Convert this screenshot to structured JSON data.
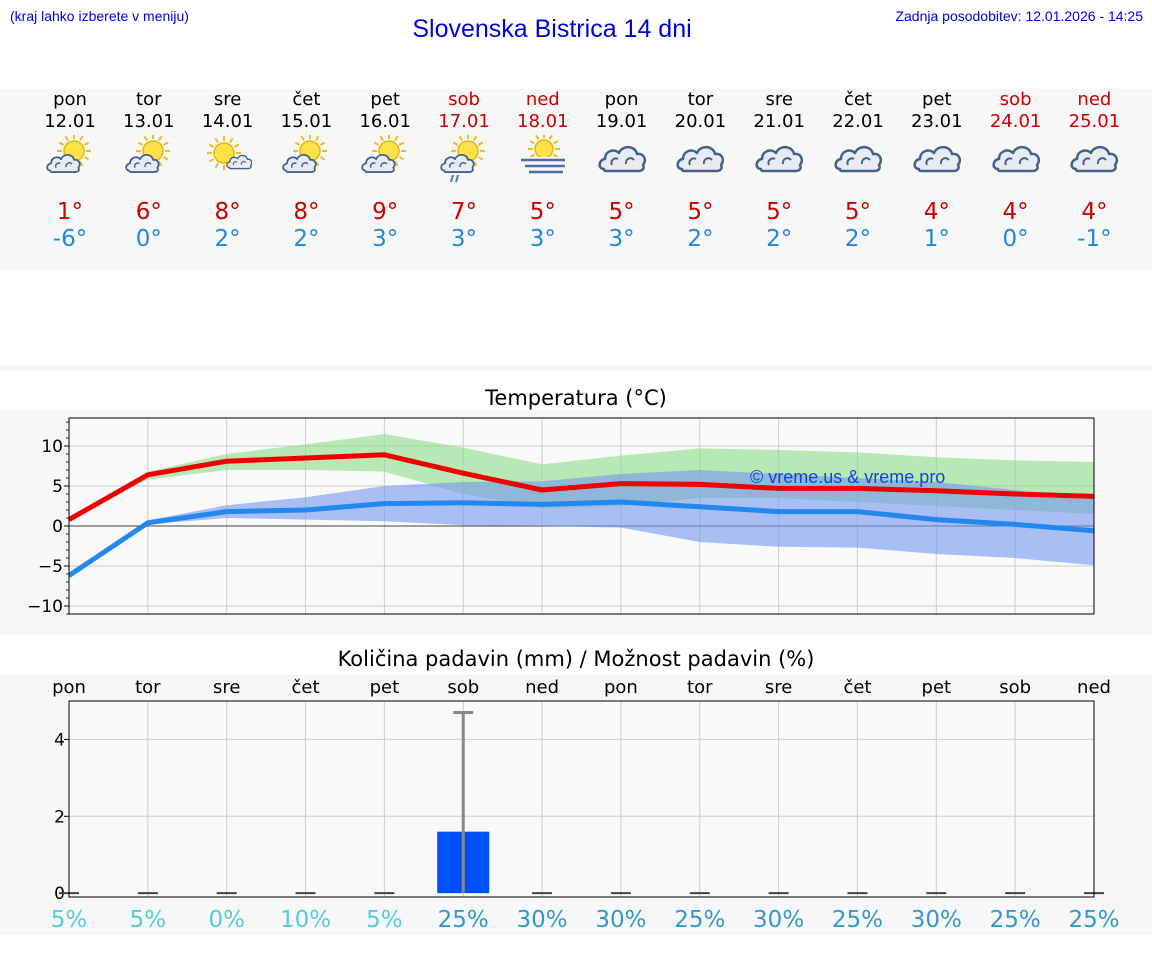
{
  "header": {
    "menu_hint": "(kraj lahko izberete v meniju)",
    "title": "Slovenska Bistrica 14 dni",
    "updated": "Zadnja posodobitev: 12.01.2026 - 14:25"
  },
  "days": [
    {
      "name": "pon",
      "date": "12.01",
      "tmax": "1°",
      "tmin": "-6°",
      "icon": "sun-cloud-icon",
      "weekend": false
    },
    {
      "name": "tor",
      "date": "13.01",
      "tmax": "6°",
      "tmin": "0°",
      "icon": "sun-cloud-icon",
      "weekend": false
    },
    {
      "name": "sre",
      "date": "14.01",
      "tmax": "8°",
      "tmin": "2°",
      "icon": "sun-small-cloud-icon",
      "weekend": false
    },
    {
      "name": "čet",
      "date": "15.01",
      "tmax": "8°",
      "tmin": "2°",
      "icon": "sun-cloud-icon",
      "weekend": false
    },
    {
      "name": "pet",
      "date": "16.01",
      "tmax": "9°",
      "tmin": "3°",
      "icon": "sun-cloud-icon",
      "weekend": false
    },
    {
      "name": "sob",
      "date": "17.01",
      "tmax": "7°",
      "tmin": "3°",
      "icon": "sun-cloud-rain-icon",
      "weekend": true
    },
    {
      "name": "ned",
      "date": "18.01",
      "tmax": "5°",
      "tmin": "3°",
      "icon": "sun-fog-icon",
      "weekend": true
    },
    {
      "name": "pon",
      "date": "19.01",
      "tmax": "5°",
      "tmin": "3°",
      "icon": "cloud-icon",
      "weekend": false
    },
    {
      "name": "tor",
      "date": "20.01",
      "tmax": "5°",
      "tmin": "2°",
      "icon": "cloud-icon",
      "weekend": false
    },
    {
      "name": "sre",
      "date": "21.01",
      "tmax": "5°",
      "tmin": "2°",
      "icon": "cloud-icon",
      "weekend": false
    },
    {
      "name": "čet",
      "date": "22.01",
      "tmax": "5°",
      "tmin": "2°",
      "icon": "cloud-icon",
      "weekend": false
    },
    {
      "name": "pet",
      "date": "23.01",
      "tmax": "4°",
      "tmin": "1°",
      "icon": "cloud-icon",
      "weekend": false
    },
    {
      "name": "sob",
      "date": "24.01",
      "tmax": "4°",
      "tmin": "0°",
      "icon": "cloud-icon",
      "weekend": true
    },
    {
      "name": "ned",
      "date": "25.01",
      "tmax": "4°",
      "tmin": "-1°",
      "icon": "cloud-icon",
      "weekend": true
    }
  ],
  "chart_data": [
    {
      "type": "line",
      "title": "Temperatura (°C)",
      "x": [
        0,
        1,
        2,
        3,
        4,
        5,
        6,
        7,
        8,
        9,
        10,
        11,
        12,
        13
      ],
      "ylim": [
        -11,
        13.5
      ],
      "yticks": [
        10,
        5,
        0,
        -5,
        -10
      ],
      "ytick_labels": [
        "10",
        "5",
        "0",
        "−5",
        "−10"
      ],
      "series": [
        {
          "name": "max",
          "color": "#ee0000",
          "values": [
            0.8,
            6.4,
            8.1,
            8.5,
            8.9,
            6.6,
            4.5,
            5.3,
            5.2,
            4.7,
            4.7,
            4.4,
            4.0,
            3.7
          ]
        },
        {
          "name": "min",
          "color": "#2288ee",
          "values": [
            -6.2,
            0.4,
            1.8,
            2.0,
            2.8,
            2.9,
            2.7,
            3.0,
            2.4,
            1.8,
            1.8,
            0.8,
            0.2,
            -0.6
          ]
        }
      ],
      "bands": [
        {
          "name": "max-range",
          "color": "#8fdd88",
          "low": [
            0.8,
            5.8,
            7.0,
            7.0,
            6.8,
            4.0,
            2.2,
            2.5,
            3.5,
            3.5,
            3.0,
            2.5,
            2.0,
            1.5
          ],
          "high": [
            0.8,
            6.8,
            9.0,
            10.2,
            11.5,
            9.8,
            7.7,
            8.8,
            9.7,
            9.5,
            9.2,
            8.6,
            8.2,
            8.0
          ]
        },
        {
          "name": "min-range",
          "color": "#7799ee",
          "low": [
            -6.2,
            0.2,
            1.0,
            0.8,
            0.6,
            0.1,
            0.0,
            -0.2,
            -2.0,
            -2.6,
            -2.7,
            -3.5,
            -4.0,
            -4.9
          ],
          "high": [
            -6.2,
            0.7,
            2.6,
            3.6,
            5.0,
            5.5,
            5.6,
            6.5,
            7.0,
            6.5,
            6.0,
            5.5,
            4.5,
            3.5
          ]
        }
      ],
      "watermark": "© vreme.us & vreme.pro",
      "grid": true
    },
    {
      "type": "bar",
      "title": "Količina padavin (mm) / Možnost padavin (%)",
      "categories": [
        "pon",
        "tor",
        "sre",
        "čet",
        "pet",
        "sob",
        "ned",
        "pon",
        "tor",
        "sre",
        "čet",
        "pet",
        "sob",
        "ned"
      ],
      "values": [
        0,
        0,
        0,
        0,
        0,
        1.6,
        0,
        0,
        0,
        0,
        0,
        0,
        0,
        0
      ],
      "error_high": [
        0,
        0,
        0,
        0,
        0,
        4.7,
        0,
        0,
        0,
        0,
        0,
        0,
        0,
        0
      ],
      "ylim": [
        -0.1,
        5.0
      ],
      "yticks": [
        0,
        2,
        4
      ],
      "ytick_labels": [
        "0",
        "2",
        "4"
      ],
      "bar_color": "#0050ff",
      "probabilities": [
        "5%",
        "5%",
        "0%",
        "10%",
        "5%",
        "25%",
        "30%",
        "30%",
        "25%",
        "30%",
        "25%",
        "30%",
        "25%",
        "25%"
      ],
      "probability_colors": [
        "#55ccdd",
        "#55ccdd",
        "#55ccdd",
        "#55ccdd",
        "#55ccdd",
        "#3399cc",
        "#3399cc",
        "#3399cc",
        "#3399cc",
        "#3399cc",
        "#3399cc",
        "#3399cc",
        "#3399cc",
        "#3399cc"
      ],
      "grid": true
    }
  ]
}
